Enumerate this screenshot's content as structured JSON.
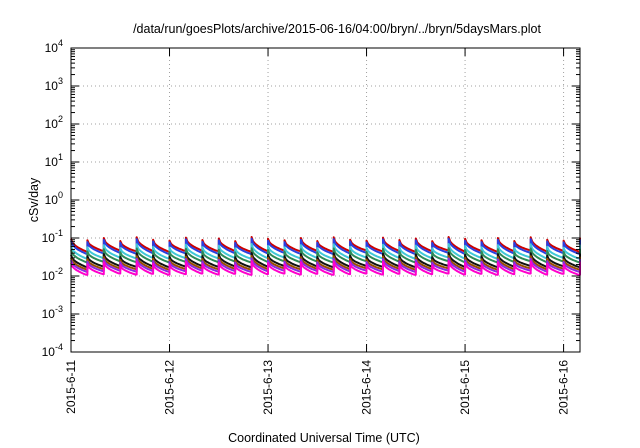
{
  "chart_data": {
    "type": "line",
    "title": "/data/run/goesPlots/archive/2015-06-16/04:00/bryn/../bryn/5daysMars.plot",
    "xlabel": "Coordinated Universal Time (UTC)",
    "ylabel": "cSv/day",
    "y_scale": "log",
    "ylim": [
      0.0001,
      10000
    ],
    "y_ticks": [
      {
        "value": 0.0001,
        "base": "10",
        "exp": "-4"
      },
      {
        "value": 0.001,
        "base": "10",
        "exp": "-3"
      },
      {
        "value": 0.01,
        "base": "10",
        "exp": "-2"
      },
      {
        "value": 0.1,
        "base": "10",
        "exp": "-1"
      },
      {
        "value": 1,
        "base": "10",
        "exp": "0"
      },
      {
        "value": 10,
        "base": "10",
        "exp": "1"
      },
      {
        "value": 100,
        "base": "10",
        "exp": "2"
      },
      {
        "value": 1000,
        "base": "10",
        "exp": "3"
      },
      {
        "value": 10000,
        "base": "10",
        "exp": "4"
      }
    ],
    "xlim": [
      "2015-06-11T00:00",
      "2015-06-16T04:00"
    ],
    "x_ticks": [
      {
        "value": "2015-06-11T00:00",
        "label": "2015-6-11"
      },
      {
        "value": "2015-06-12T00:00",
        "label": "2015-6-12"
      },
      {
        "value": "2015-06-13T00:00",
        "label": "2015-6-13"
      },
      {
        "value": "2015-06-14T00:00",
        "label": "2015-6-14"
      },
      {
        "value": "2015-06-15T00:00",
        "label": "2015-6-15"
      },
      {
        "value": "2015-06-16T00:00",
        "label": "2015-6-16"
      }
    ],
    "grid": true,
    "legend": "none",
    "period_hours": 4,
    "series": [
      {
        "color": "#cc0000",
        "peak": 0.095,
        "trough": 0.046
      },
      {
        "color": "#2a3fe0",
        "peak": 0.085,
        "trough": 0.04
      },
      {
        "color": "#40c8d8",
        "peak": 0.062,
        "trough": 0.03
      },
      {
        "color": "#2e8b57",
        "peak": 0.048,
        "trough": 0.024
      },
      {
        "color": "#111111",
        "peak": 0.036,
        "trough": 0.018
      },
      {
        "color": "#9a4f00",
        "peak": 0.03,
        "trough": 0.0155
      },
      {
        "color": "#8a2be2",
        "peak": 0.026,
        "trough": 0.0135
      },
      {
        "color": "#ff00cc",
        "peak": 0.022,
        "trough": 0.0112
      }
    ]
  }
}
